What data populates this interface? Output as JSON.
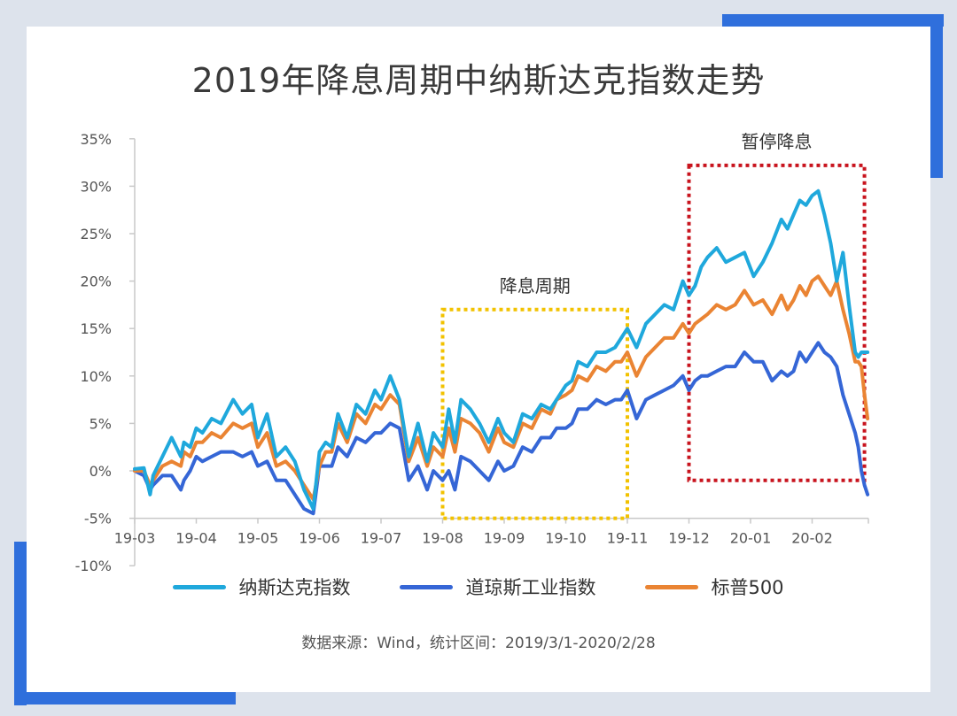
{
  "page": {
    "title": "2019年降息周期中纳斯达克指数走势",
    "source": "数据来源：Wind，统计区间：2019/3/1-2020/2/28"
  },
  "colors": {
    "background": "#dde3ec",
    "card": "#ffffff",
    "accent_blue": "#2f6fdc",
    "nasdaq": "#1fa8dc",
    "dow": "#3566d6",
    "sp500": "#ea8433",
    "cut_box": "#f2c200",
    "pause_box": "#c8141e"
  },
  "chart_data": {
    "type": "line",
    "title": "2019年降息周期中纳斯达克指数走势",
    "xlabel": "",
    "ylabel": "",
    "ylim": [
      -10,
      35
    ],
    "yticks": [
      35,
      30,
      25,
      20,
      15,
      10,
      5,
      0,
      -5,
      -10
    ],
    "ytick_labels": [
      "35%",
      "30%",
      "25%",
      "20%",
      "15%",
      "10%",
      "5%",
      "0%",
      "-5%",
      "-10%"
    ],
    "xlim": [
      0,
      12
    ],
    "x_ticks": [
      0,
      1,
      2,
      3,
      4,
      5,
      6,
      7,
      8,
      9,
      10,
      11
    ],
    "x_tick_labels": [
      "19-03",
      "19-04",
      "19-05",
      "19-06",
      "19-07",
      "19-08",
      "19-09",
      "19-10",
      "19-11",
      "19-12",
      "20-01",
      "20-02"
    ],
    "grid": false,
    "legend_position": "bottom",
    "annotations": [
      {
        "text": "降息周期",
        "x0": 5,
        "x1": 8,
        "y0": -5,
        "y1": 17,
        "style": "dotted-yellow"
      },
      {
        "text": "暂停降息",
        "x0": 9,
        "x1": 11.85,
        "y0": -1,
        "y1": 32.2,
        "style": "dotted-red"
      }
    ],
    "series": [
      {
        "name": "纳斯达克指数",
        "x": [
          0,
          0.15,
          0.25,
          0.3,
          0.45,
          0.6,
          0.75,
          0.8,
          0.9,
          1.0,
          1.1,
          1.25,
          1.4,
          1.6,
          1.75,
          1.9,
          2.0,
          2.15,
          2.3,
          2.45,
          2.6,
          2.75,
          2.9,
          3.0,
          3.1,
          3.2,
          3.3,
          3.45,
          3.6,
          3.75,
          3.9,
          4.0,
          4.15,
          4.3,
          4.45,
          4.6,
          4.75,
          4.85,
          5.0,
          5.1,
          5.2,
          5.3,
          5.45,
          5.6,
          5.75,
          5.9,
          6.0,
          6.15,
          6.3,
          6.45,
          6.6,
          6.75,
          6.85,
          7.0,
          7.1,
          7.2,
          7.35,
          7.5,
          7.65,
          7.8,
          7.9,
          8.0,
          8.15,
          8.3,
          8.45,
          8.6,
          8.75,
          8.9,
          9.0,
          9.1,
          9.2,
          9.3,
          9.45,
          9.6,
          9.75,
          9.9,
          10.05,
          10.2,
          10.35,
          10.5,
          10.6,
          10.7,
          10.8,
          10.9,
          11.0,
          11.1,
          11.2,
          11.3,
          11.4,
          11.5,
          11.6,
          11.7,
          11.75,
          11.8,
          11.85,
          11.9
        ],
        "values": [
          0.2,
          0.3,
          -2.5,
          -0.5,
          1.5,
          3.5,
          1.5,
          3.0,
          2.5,
          4.5,
          4.0,
          5.5,
          5.0,
          7.5,
          6.0,
          7.0,
          3.5,
          6.0,
          1.5,
          2.5,
          1.0,
          -2.0,
          -4.0,
          2.0,
          3.0,
          2.5,
          6.0,
          3.5,
          7.0,
          6.0,
          8.5,
          7.5,
          10.0,
          7.5,
          1.5,
          5.0,
          1.0,
          4.0,
          2.5,
          6.5,
          3.0,
          7.5,
          6.5,
          5.0,
          3.0,
          5.5,
          4.0,
          3.0,
          6.0,
          5.5,
          7.0,
          6.5,
          7.5,
          9.0,
          9.5,
          11.5,
          11.0,
          12.5,
          12.5,
          13.0,
          14.0,
          15.0,
          13.0,
          15.5,
          16.5,
          17.5,
          17.0,
          20.0,
          18.5,
          19.5,
          21.5,
          22.5,
          23.5,
          22.0,
          22.5,
          23.0,
          20.5,
          22.0,
          24.0,
          26.5,
          25.5,
          27.0,
          28.5,
          28.0,
          29.0,
          29.5,
          27.0,
          24.0,
          20.0,
          23.0,
          17.5,
          12.5,
          12.0,
          12.5,
          12.5,
          12.5
        ]
      },
      {
        "name": "道琼斯工业指数",
        "x": [
          0,
          0.15,
          0.25,
          0.3,
          0.45,
          0.6,
          0.75,
          0.8,
          0.9,
          1.0,
          1.1,
          1.25,
          1.4,
          1.6,
          1.75,
          1.9,
          2.0,
          2.15,
          2.3,
          2.45,
          2.6,
          2.75,
          2.9,
          3.0,
          3.1,
          3.2,
          3.3,
          3.45,
          3.6,
          3.75,
          3.9,
          4.0,
          4.15,
          4.3,
          4.45,
          4.6,
          4.75,
          4.85,
          5.0,
          5.1,
          5.2,
          5.3,
          5.45,
          5.6,
          5.75,
          5.9,
          6.0,
          6.15,
          6.3,
          6.45,
          6.6,
          6.75,
          6.85,
          7.0,
          7.1,
          7.2,
          7.35,
          7.5,
          7.65,
          7.8,
          7.9,
          8.0,
          8.15,
          8.3,
          8.45,
          8.6,
          8.75,
          8.9,
          9.0,
          9.1,
          9.2,
          9.3,
          9.45,
          9.6,
          9.75,
          9.9,
          10.05,
          10.2,
          10.35,
          10.5,
          10.6,
          10.7,
          10.8,
          10.9,
          11.0,
          11.1,
          11.2,
          11.3,
          11.4,
          11.5,
          11.6,
          11.7,
          11.75,
          11.8,
          11.85,
          11.9
        ],
        "values": [
          0.0,
          -0.5,
          -2.0,
          -1.5,
          -0.5,
          -0.5,
          -2.0,
          -1.0,
          0.0,
          1.5,
          1.0,
          1.5,
          2.0,
          2.0,
          1.5,
          2.0,
          0.5,
          1.0,
          -1.0,
          -1.0,
          -2.5,
          -4.0,
          -4.5,
          0.5,
          0.5,
          0.5,
          2.5,
          1.5,
          3.5,
          3.0,
          4.0,
          4.0,
          5.0,
          4.5,
          -1.0,
          0.5,
          -2.0,
          0.0,
          -1.0,
          0.0,
          -2.0,
          1.5,
          1.0,
          0.0,
          -1.0,
          1.0,
          0.0,
          0.5,
          2.5,
          2.0,
          3.5,
          3.5,
          4.5,
          4.5,
          5.0,
          6.5,
          6.5,
          7.5,
          7.0,
          7.5,
          7.5,
          8.5,
          5.5,
          7.5,
          8.0,
          8.5,
          9.0,
          10.0,
          8.5,
          9.5,
          10.0,
          10.0,
          10.5,
          11.0,
          11.0,
          12.5,
          11.5,
          11.5,
          9.5,
          10.5,
          10.0,
          10.5,
          12.5,
          11.5,
          12.5,
          13.5,
          12.5,
          12.0,
          11.0,
          8.0,
          6.0,
          4.0,
          2.5,
          0.0,
          -1.5,
          -2.5
        ]
      },
      {
        "name": "标普500",
        "x": [
          0,
          0.15,
          0.25,
          0.3,
          0.45,
          0.6,
          0.75,
          0.8,
          0.9,
          1.0,
          1.1,
          1.25,
          1.4,
          1.6,
          1.75,
          1.9,
          2.0,
          2.15,
          2.3,
          2.45,
          2.6,
          2.75,
          2.9,
          3.0,
          3.1,
          3.2,
          3.3,
          3.45,
          3.6,
          3.75,
          3.9,
          4.0,
          4.15,
          4.3,
          4.45,
          4.6,
          4.75,
          4.85,
          5.0,
          5.1,
          5.2,
          5.3,
          5.45,
          5.6,
          5.75,
          5.9,
          6.0,
          6.15,
          6.3,
          6.45,
          6.6,
          6.75,
          6.85,
          7.0,
          7.1,
          7.2,
          7.35,
          7.5,
          7.65,
          7.8,
          7.9,
          8.0,
          8.15,
          8.3,
          8.45,
          8.6,
          8.75,
          8.9,
          9.0,
          9.1,
          9.2,
          9.3,
          9.45,
          9.6,
          9.75,
          9.9,
          10.05,
          10.2,
          10.35,
          10.5,
          10.6,
          10.7,
          10.8,
          10.9,
          11.0,
          11.1,
          11.2,
          11.3,
          11.4,
          11.5,
          11.6,
          11.7,
          11.75,
          11.8,
          11.85,
          11.9
        ],
        "values": [
          0.0,
          0.0,
          -1.5,
          -1.0,
          0.5,
          1.0,
          0.5,
          2.0,
          1.5,
          3.0,
          3.0,
          4.0,
          3.5,
          5.0,
          4.5,
          5.0,
          2.5,
          4.0,
          0.5,
          1.0,
          0.0,
          -1.5,
          -3.0,
          0.5,
          2.0,
          2.0,
          5.0,
          3.0,
          6.0,
          5.0,
          7.0,
          6.5,
          8.0,
          7.0,
          1.0,
          3.5,
          0.5,
          2.5,
          1.5,
          4.5,
          2.0,
          5.5,
          5.0,
          4.0,
          2.0,
          4.5,
          3.0,
          2.5,
          5.0,
          4.5,
          6.5,
          6.0,
          7.5,
          8.0,
          8.5,
          10.0,
          9.5,
          11.0,
          10.5,
          11.5,
          11.5,
          12.5,
          10.0,
          12.0,
          13.0,
          14.0,
          14.0,
          15.5,
          14.5,
          15.5,
          16.0,
          16.5,
          17.5,
          17.0,
          17.5,
          19.0,
          17.5,
          18.0,
          16.5,
          18.5,
          17.0,
          18.0,
          19.5,
          18.5,
          20.0,
          20.5,
          19.5,
          18.5,
          20.0,
          17.0,
          14.5,
          11.5,
          11.5,
          11.0,
          8.0,
          5.5
        ]
      }
    ]
  }
}
